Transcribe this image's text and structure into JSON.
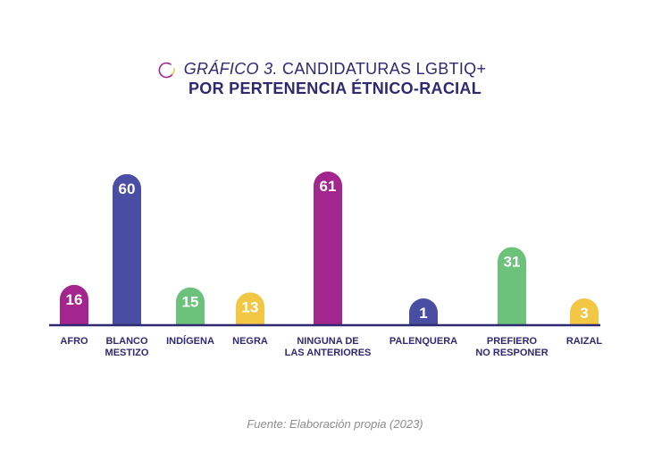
{
  "title": {
    "prefix": "GRÁFICO 3.",
    "rest": " CANDIDATURAS LGBTIQ+",
    "line2": "POR PERTENENCIA ÉTNICO-RACIAL"
  },
  "source": "Fuente: Elaboración propia (2023)",
  "colors": {
    "title": "#2e2a72",
    "baseline": "#2e2a72",
    "magenta": "#a3268f",
    "blue": "#4a4ea3",
    "green": "#6cc27a",
    "yellow": "#f2c744",
    "source": "#8d8d8d"
  },
  "chart_data": {
    "type": "bar",
    "categories": [
      [
        "AFRO"
      ],
      [
        "BLANCO",
        "MESTIZO"
      ],
      [
        "INDÍGENA"
      ],
      [
        "NEGRA"
      ],
      [
        "NINGUNA DE",
        "LAS ANTERIORES"
      ],
      [
        "PALENQUERA"
      ],
      [
        "PREFIERO",
        "NO RESPONER"
      ],
      [
        "RAIZAL"
      ]
    ],
    "values": [
      16,
      60,
      15,
      13,
      61,
      1,
      31,
      3
    ],
    "value_labels": [
      "16",
      "60",
      "15",
      "13",
      "61",
      "1",
      "31",
      "3"
    ],
    "bar_colors": [
      "#a3268f",
      "#4a4ea3",
      "#6cc27a",
      "#f2c744",
      "#a3268f",
      "#4a4ea3",
      "#6cc27a",
      "#f2c744"
    ],
    "ylim": [
      0,
      61
    ],
    "grid": false,
    "legend": "none"
  }
}
